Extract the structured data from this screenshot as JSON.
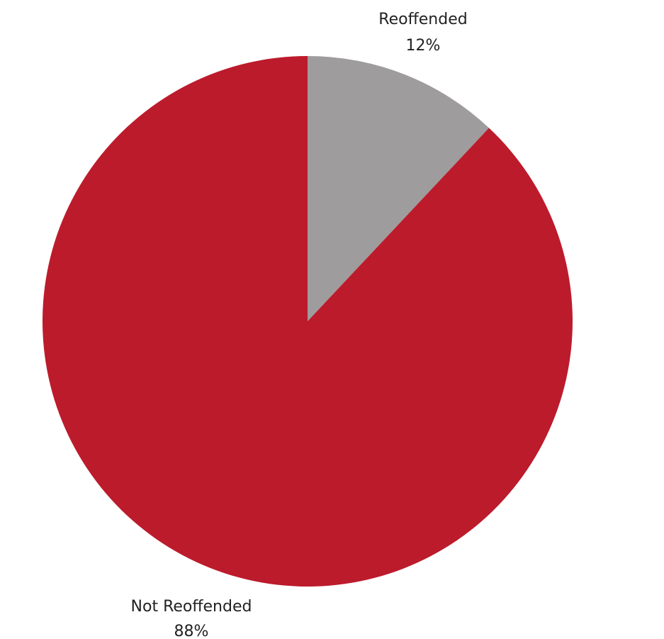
{
  "chart_data": {
    "type": "pie",
    "slices": [
      {
        "label": "Reoffended",
        "value": 12,
        "value_label": "12%",
        "color": "#9e9c9c"
      },
      {
        "label": "Not Reoffended",
        "value": 88,
        "value_label": "88%",
        "color": "#bc1b2c"
      }
    ]
  }
}
